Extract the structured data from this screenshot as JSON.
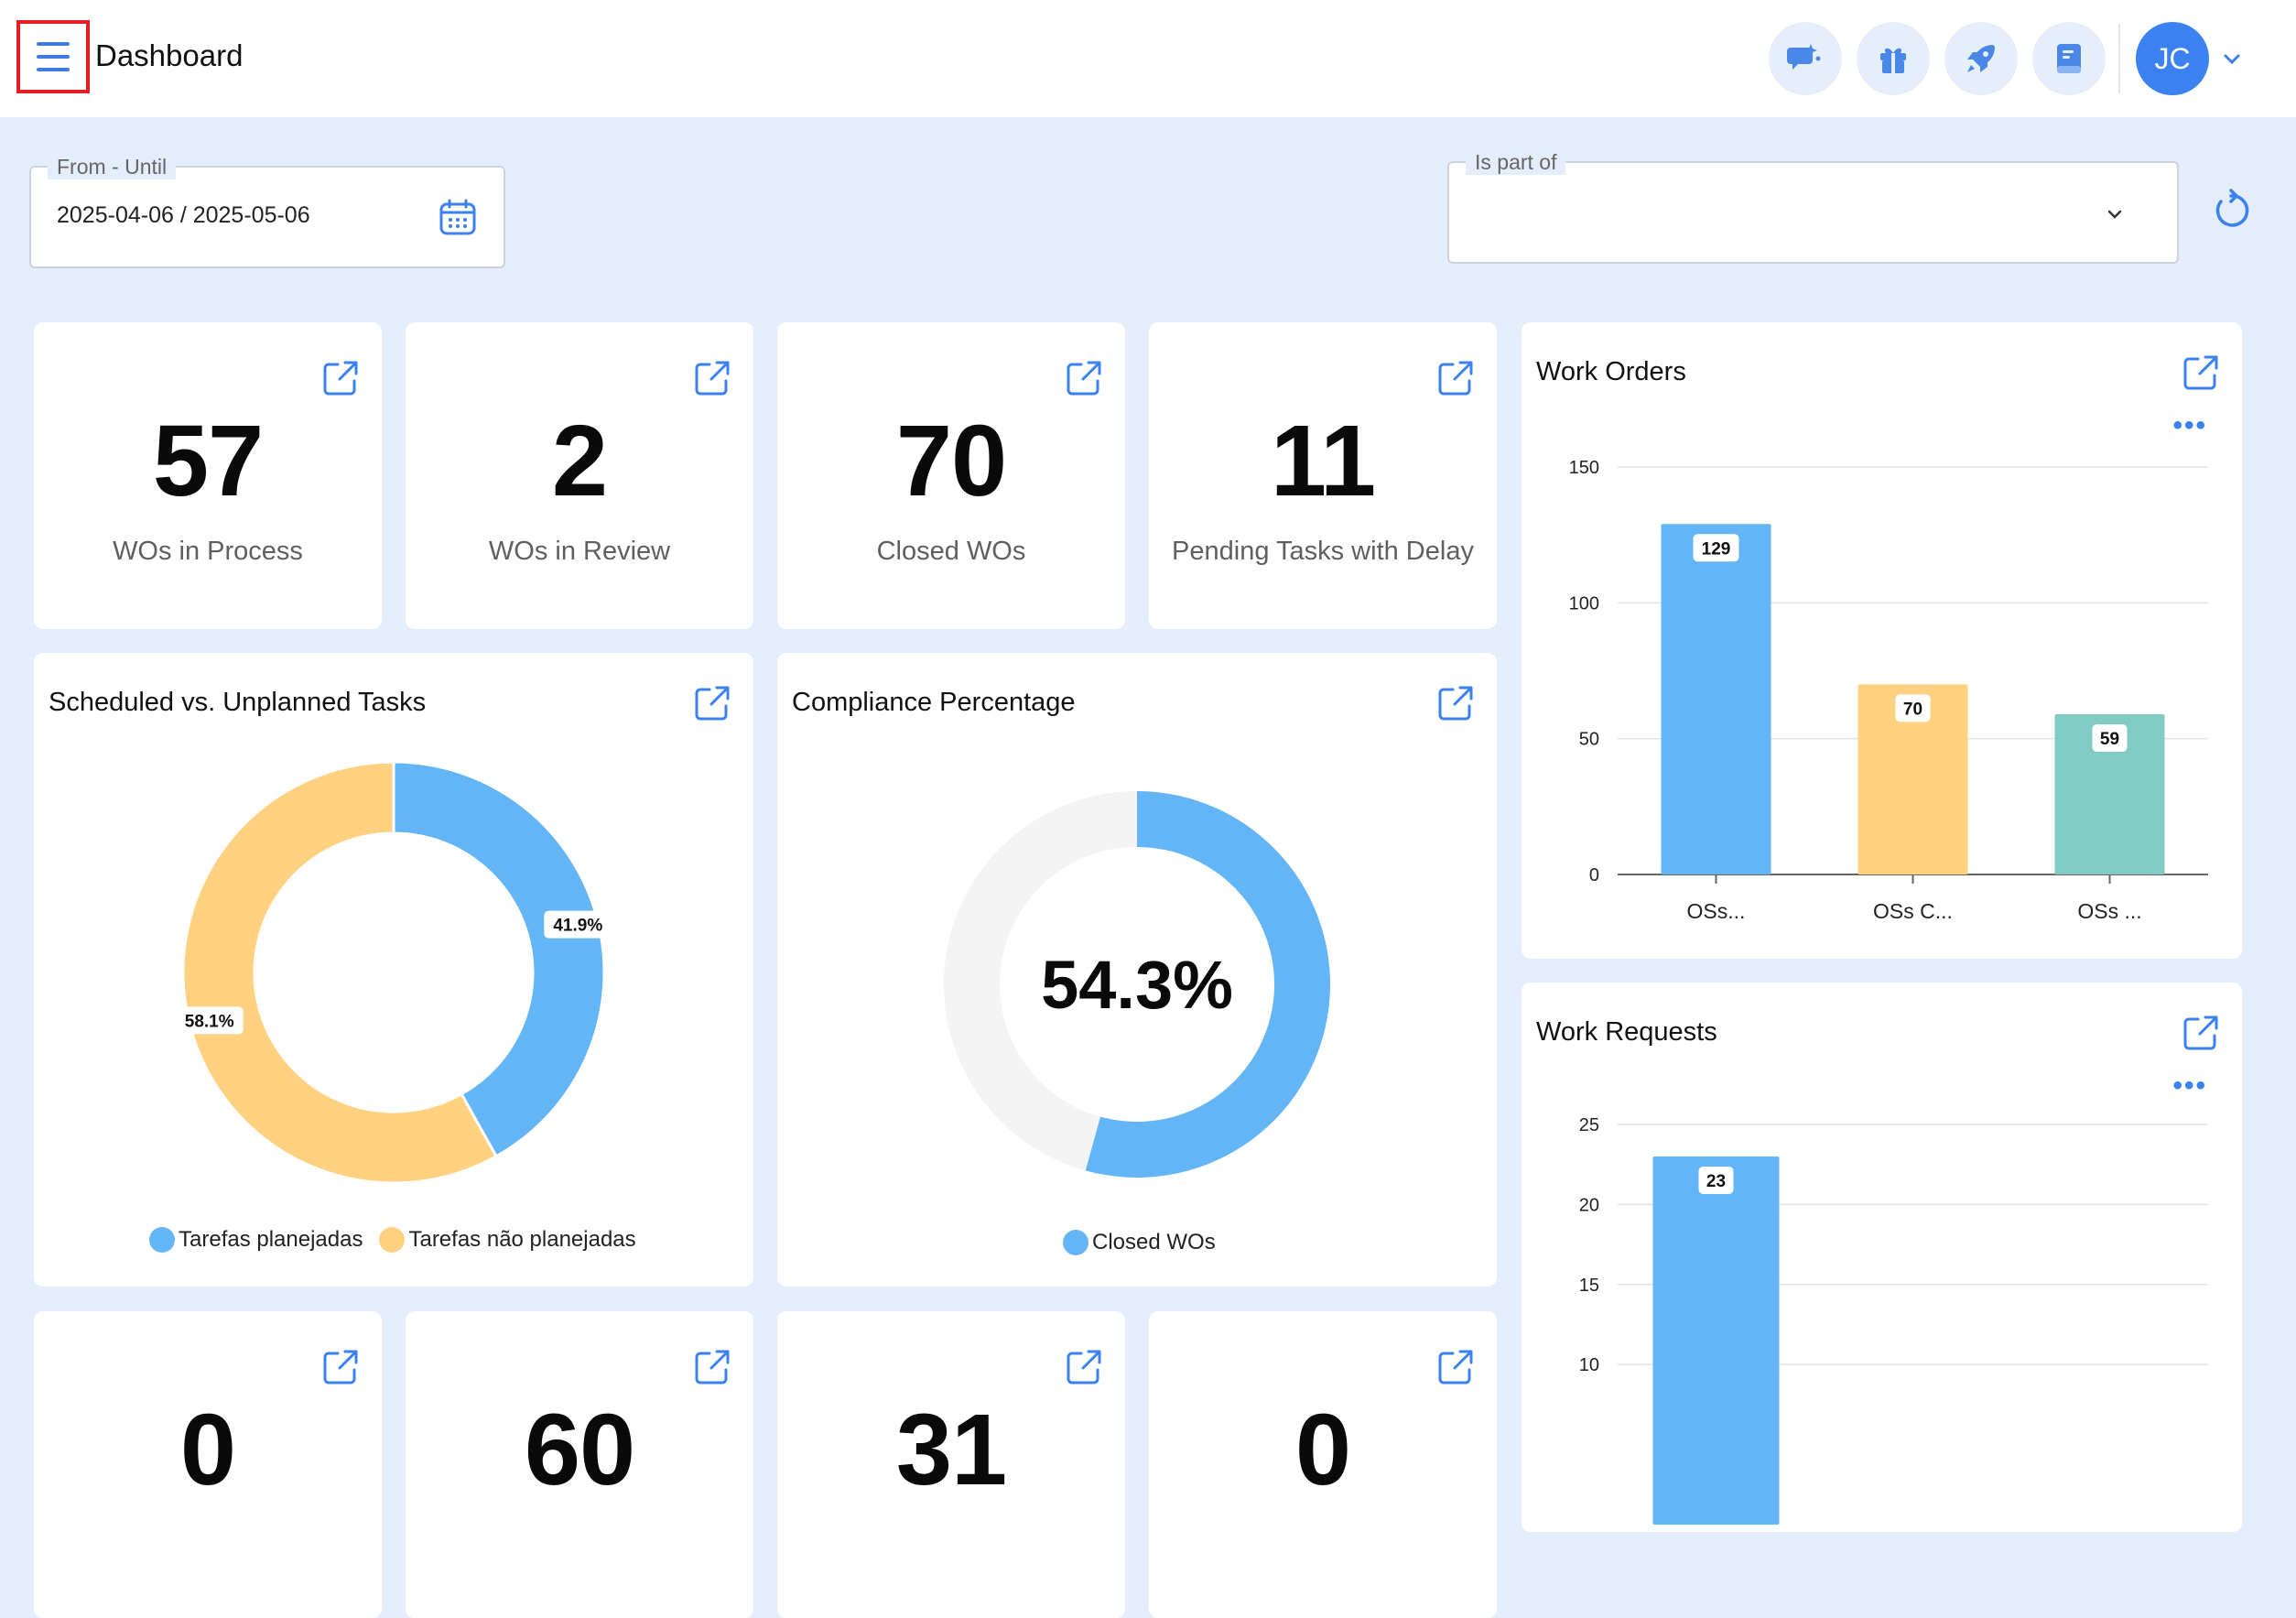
{
  "header": {
    "title": "Dashboard",
    "avatar_initials": "JC",
    "icons": [
      "chat-sparkle-icon",
      "gift-icon",
      "rocket-icon",
      "book-icon"
    ]
  },
  "filters": {
    "date_range": {
      "label": "From - Until",
      "value": "2025-04-06 / 2025-05-06"
    },
    "is_part_of": {
      "label": "Is part of",
      "value": ""
    }
  },
  "kpis_top": [
    {
      "value": "57",
      "label": "WOs in Process"
    },
    {
      "value": "2",
      "label": "WOs in Review"
    },
    {
      "value": "70",
      "label": "Closed WOs"
    },
    {
      "value": "11",
      "label": "Pending Tasks with Delay"
    }
  ],
  "kpis_bottom": [
    {
      "value": "0"
    },
    {
      "value": "60"
    },
    {
      "value": "31"
    },
    {
      "value": "0"
    }
  ],
  "scheduled_vs_unplanned": {
    "title": "Scheduled vs. Unplanned Tasks",
    "legend": [
      "Tarefas planejadas",
      "Tarefas não planejadas"
    ]
  },
  "compliance": {
    "title": "Compliance Percentage",
    "center_value": "54.3%",
    "legend": [
      "Closed WOs"
    ]
  },
  "work_orders": {
    "title": "Work Orders"
  },
  "work_requests": {
    "title": "Work Requests"
  },
  "colors": {
    "blue": "#64b5f6",
    "yellow": "#ffd180",
    "teal": "#80cbc4",
    "track": "#f4f4f4",
    "accent": "#3b82f0"
  },
  "chart_data": [
    {
      "type": "pie",
      "title": "Scheduled vs. Unplanned Tasks",
      "donut": true,
      "slices": [
        {
          "name": "Tarefas planejadas",
          "value": 41.9,
          "label": "41.9%",
          "color": "#64b5f6"
        },
        {
          "name": "Tarefas não planejadas",
          "value": 58.1,
          "label": "58.1%",
          "color": "#ffd180"
        }
      ],
      "legend": "bottom"
    },
    {
      "type": "pie",
      "title": "Compliance Percentage",
      "donut": true,
      "slices": [
        {
          "name": "Closed WOs",
          "value": 54.3,
          "color": "#64b5f6"
        },
        {
          "value": 45.7,
          "color": "#f4f4f4"
        }
      ],
      "center_label": "54.3%",
      "legend": "bottom"
    },
    {
      "type": "bar",
      "title": "Work Orders",
      "categories": [
        "OSs...",
        "OSs C...",
        "OSs ..."
      ],
      "values": [
        129,
        70,
        59
      ],
      "colors": [
        "#64b5f6",
        "#ffd180",
        "#80cbc4"
      ],
      "yticks": [
        0,
        50,
        100,
        150
      ],
      "ylim": [
        0,
        150
      ],
      "grid": true
    },
    {
      "type": "bar",
      "title": "Work Requests",
      "categories": [
        ""
      ],
      "values": [
        23
      ],
      "colors": [
        "#64b5f6"
      ],
      "yticks": [
        10,
        15,
        20,
        25
      ],
      "ylim": [
        0,
        25
      ],
      "grid": true
    }
  ]
}
